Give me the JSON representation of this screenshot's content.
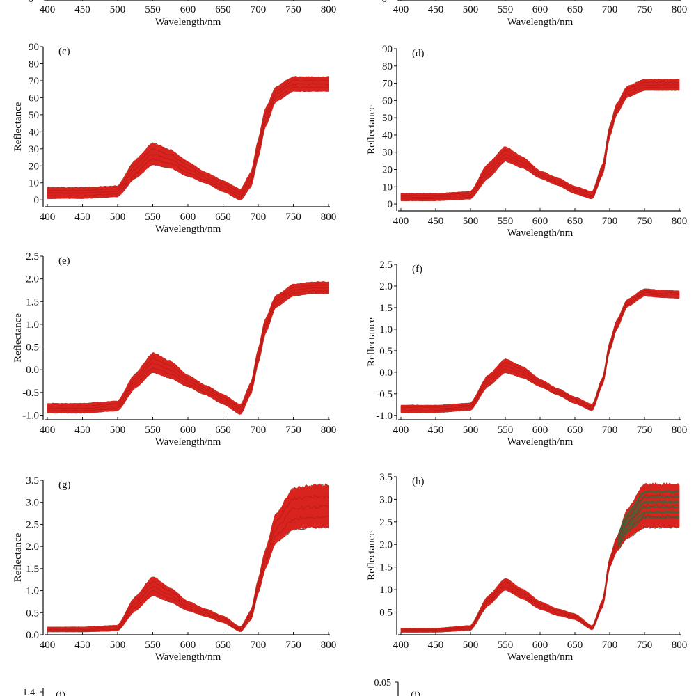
{
  "chart_data": [
    {
      "panel": "top-left (partial)",
      "type": "area",
      "xlabel": "Wavelength/nm",
      "xticks": [
        400,
        450,
        500,
        550,
        600,
        650,
        700,
        750,
        800
      ],
      "yticks_visible": [
        "0"
      ]
    },
    {
      "panel": "top-right (partial)",
      "type": "area",
      "xlabel": "Wavelength/nm",
      "xticks": [
        400,
        450,
        500,
        550,
        600,
        650,
        700,
        750,
        800
      ],
      "yticks_visible": [
        "0"
      ]
    },
    {
      "panel": "(c)",
      "type": "area",
      "xlabel": "Wavelength/nm",
      "ylabel": "Reflectance",
      "xlim": [
        400,
        800
      ],
      "ylim": [
        -4,
        90
      ],
      "xticks": [
        400,
        450,
        500,
        550,
        600,
        650,
        700,
        750,
        800
      ],
      "yticks": [
        0,
        10,
        20,
        30,
        40,
        50,
        60,
        70,
        80,
        90
      ],
      "wavelength": [
        400,
        450,
        500,
        525,
        550,
        575,
        600,
        625,
        650,
        675,
        690,
        700,
        710,
        725,
        750,
        775,
        800
      ],
      "mean": [
        4,
        4,
        5,
        18,
        27,
        24,
        18,
        13,
        8,
        3,
        12,
        30,
        48,
        62,
        68,
        68,
        68
      ],
      "spread": [
        3,
        3,
        3,
        5,
        6,
        5,
        4,
        3,
        3,
        3,
        4,
        5,
        5,
        4,
        4,
        4,
        4
      ]
    },
    {
      "panel": "(d)",
      "type": "area",
      "xlabel": "Wavelength/nm",
      "ylabel": "Reflectance",
      "xlim": [
        400,
        800
      ],
      "ylim": [
        -4,
        90
      ],
      "xticks": [
        400,
        450,
        500,
        550,
        600,
        650,
        700,
        750,
        800
      ],
      "yticks": [
        0,
        10,
        20,
        30,
        40,
        50,
        60,
        70,
        80,
        90
      ],
      "wavelength": [
        400,
        450,
        500,
        525,
        550,
        575,
        600,
        625,
        650,
        675,
        690,
        700,
        710,
        725,
        750,
        775,
        800
      ],
      "mean": [
        4,
        4,
        5,
        19,
        29,
        24,
        17,
        13,
        8,
        5,
        20,
        42,
        55,
        65,
        69,
        69,
        69
      ],
      "spread": [
        2,
        2,
        2,
        4,
        4,
        3,
        2,
        2,
        2,
        2,
        3,
        3,
        3,
        3,
        3,
        3,
        3
      ]
    },
    {
      "panel": "(e)",
      "type": "area",
      "xlabel": "Wavelength/nm",
      "ylabel": "Reflectance",
      "xlim": [
        400,
        800
      ],
      "ylim": [
        -1.1,
        2.5
      ],
      "xticks": [
        400,
        450,
        500,
        550,
        600,
        650,
        700,
        750,
        800
      ],
      "yticks": [
        -1.0,
        -0.5,
        0.0,
        0.5,
        1.0,
        1.5,
        2.0,
        2.5
      ],
      "wavelength": [
        400,
        450,
        500,
        525,
        550,
        575,
        600,
        625,
        650,
        675,
        690,
        700,
        710,
        725,
        750,
        775,
        800
      ],
      "mean": [
        -0.85,
        -0.85,
        -0.8,
        -0.25,
        0.15,
        0.0,
        -0.25,
        -0.45,
        -0.65,
        -0.88,
        -0.4,
        0.3,
        0.95,
        1.5,
        1.75,
        1.8,
        1.8
      ],
      "spread": [
        0.1,
        0.1,
        0.1,
        0.15,
        0.2,
        0.18,
        0.12,
        0.1,
        0.1,
        0.1,
        0.12,
        0.15,
        0.15,
        0.12,
        0.12,
        0.12,
        0.12
      ]
    },
    {
      "panel": "(f)",
      "type": "area",
      "xlabel": "Wavelength/nm",
      "ylabel": "Reflectance",
      "xlim": [
        400,
        800
      ],
      "ylim": [
        -1.1,
        2.5
      ],
      "xticks": [
        400,
        450,
        500,
        550,
        600,
        650,
        700,
        750,
        800
      ],
      "yticks": [
        -1.0,
        -0.5,
        0.0,
        0.5,
        1.0,
        1.5,
        2.0,
        2.5
      ],
      "wavelength": [
        400,
        450,
        500,
        525,
        550,
        575,
        600,
        625,
        650,
        675,
        690,
        700,
        710,
        725,
        750,
        775,
        800
      ],
      "mean": [
        -0.85,
        -0.85,
        -0.8,
        -0.2,
        0.15,
        0.0,
        -0.25,
        -0.45,
        -0.65,
        -0.82,
        -0.2,
        0.6,
        1.1,
        1.6,
        1.85,
        1.82,
        1.8
      ],
      "spread": [
        0.08,
        0.08,
        0.08,
        0.12,
        0.15,
        0.12,
        0.08,
        0.07,
        0.07,
        0.07,
        0.08,
        0.1,
        0.1,
        0.08,
        0.08,
        0.08,
        0.08
      ]
    },
    {
      "panel": "(g)",
      "type": "area",
      "xlabel": "Wavelength/nm",
      "ylabel": "Reflectance",
      "xlim": [
        400,
        800
      ],
      "ylim": [
        0,
        3.5
      ],
      "xticks": [
        400,
        450,
        500,
        550,
        600,
        650,
        700,
        750,
        800
      ],
      "yticks": [
        0.0,
        0.5,
        1.0,
        1.5,
        2.0,
        2.5,
        3.0,
        3.5
      ],
      "wavelength": [
        400,
        450,
        500,
        525,
        550,
        575,
        600,
        625,
        650,
        675,
        690,
        700,
        710,
        725,
        750,
        775,
        800
      ],
      "mean": [
        0.12,
        0.12,
        0.15,
        0.7,
        1.1,
        0.9,
        0.65,
        0.5,
        0.35,
        0.12,
        0.45,
        1.1,
        1.7,
        2.4,
        2.85,
        2.9,
        2.9
      ],
      "spread": [
        0.05,
        0.05,
        0.06,
        0.15,
        0.2,
        0.15,
        0.1,
        0.08,
        0.07,
        0.05,
        0.1,
        0.15,
        0.2,
        0.3,
        0.45,
        0.45,
        0.45
      ]
    },
    {
      "panel": "(h)",
      "type": "area",
      "xlabel": "Wavelength/nm",
      "ylabel": "Reflectance",
      "xlim": [
        400,
        800
      ],
      "ylim": [
        0,
        3.5
      ],
      "xticks": [
        400,
        450,
        500,
        550,
        600,
        650,
        700,
        750,
        800
      ],
      "yticks": [
        0.5,
        1.0,
        1.5,
        2.0,
        2.5,
        3.0,
        3.5
      ],
      "wavelength": [
        400,
        450,
        500,
        525,
        550,
        575,
        600,
        625,
        650,
        675,
        690,
        700,
        710,
        725,
        750,
        775,
        800
      ],
      "mean": [
        0.1,
        0.1,
        0.15,
        0.75,
        1.12,
        0.9,
        0.65,
        0.5,
        0.4,
        0.15,
        0.7,
        1.6,
        2.0,
        2.45,
        2.85,
        2.85,
        2.85
      ],
      "spread": [
        0.04,
        0.04,
        0.05,
        0.1,
        0.12,
        0.1,
        0.08,
        0.07,
        0.06,
        0.04,
        0.08,
        0.1,
        0.15,
        0.3,
        0.45,
        0.45,
        0.45
      ]
    },
    {
      "panel": "(i) (partial)",
      "type": "area",
      "yticks_visible": [
        "1.4"
      ]
    },
    {
      "panel": "(j) (partial)",
      "type": "area",
      "yticks_visible": [
        "0.05"
      ]
    }
  ],
  "colors": {
    "band": "#d8231e",
    "edge_green": "#2f6b3a",
    "edge_purple": "#5a3f8a",
    "edge_olive": "#8a7a2a",
    "axis": "#111111"
  }
}
